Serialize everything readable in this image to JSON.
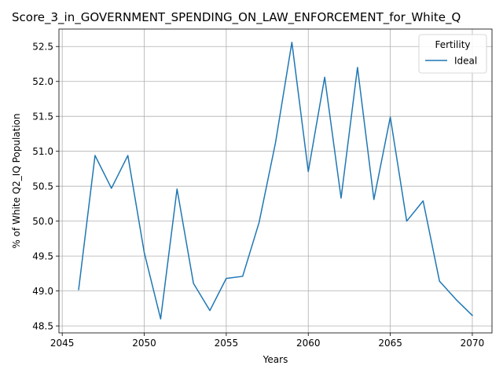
{
  "chart_data": {
    "type": "line",
    "title": "Score_3_in_GOVERNMENT_SPENDING_ON_LAW_ENFORCEMENT_for_White_Q",
    "xlabel": "Years",
    "ylabel": "% of White Q2_IQ Population",
    "xlim": [
      2044.8,
      2071.2
    ],
    "ylim": [
      48.4,
      52.75
    ],
    "xticks": [
      2045,
      2050,
      2055,
      2060,
      2065,
      2070
    ],
    "yticks": [
      48.5,
      49.0,
      49.5,
      50.0,
      50.5,
      51.0,
      51.5,
      52.0,
      52.5
    ],
    "ytick_labels": [
      "48.5",
      "49.0",
      "49.5",
      "50.0",
      "50.5",
      "51.0",
      "51.5",
      "52.0",
      "52.5"
    ],
    "grid": true,
    "legend": {
      "title": "Fertility",
      "placement": "top-right"
    },
    "x": [
      2046,
      2047,
      2048,
      2049,
      2050,
      2051,
      2052,
      2053,
      2054,
      2055,
      2056,
      2057,
      2058,
      2059,
      2060,
      2061,
      2062,
      2063,
      2064,
      2065,
      2066,
      2067,
      2068,
      2069,
      2070
    ],
    "series": [
      {
        "name": "Ideal",
        "color": "#1f77b4",
        "values": [
          49.02,
          50.94,
          50.47,
          50.94,
          49.55,
          48.6,
          50.46,
          49.11,
          48.72,
          49.18,
          49.21,
          49.98,
          51.12,
          52.56,
          50.71,
          52.06,
          50.33,
          52.2,
          50.31,
          51.49,
          50.0,
          50.29,
          49.14,
          48.88,
          48.65
        ]
      }
    ]
  }
}
